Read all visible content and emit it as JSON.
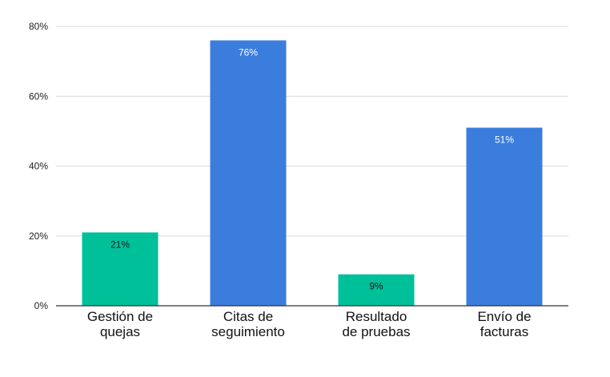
{
  "chart_data": {
    "type": "bar",
    "title": "",
    "xlabel": "",
    "ylabel": "",
    "categories": [
      [
        "Gestión de",
        "quejas"
      ],
      [
        "Citas de",
        "seguimiento"
      ],
      [
        "Resultado",
        "de pruebas"
      ],
      [
        "Envío de",
        "facturas"
      ]
    ],
    "values": [
      21,
      76,
      9,
      51
    ],
    "value_labels": [
      "21%",
      "76%",
      "9%",
      "51%"
    ],
    "bar_colors": [
      "#00c09a",
      "#3b7ddd",
      "#00c09a",
      "#3b7ddd"
    ],
    "label_colors": [
      "#1a1a1a",
      "#ffffff",
      "#1a1a1a",
      "#ffffff"
    ],
    "ylim": [
      0,
      80
    ],
    "yticks": [
      0,
      20,
      40,
      60,
      80
    ],
    "ytick_labels": [
      "0%",
      "20%",
      "40%",
      "60%",
      "80%"
    ],
    "grid": true,
    "gridline_color": "#d9d9d9",
    "axis_color": "#333333",
    "legend": "none"
  }
}
